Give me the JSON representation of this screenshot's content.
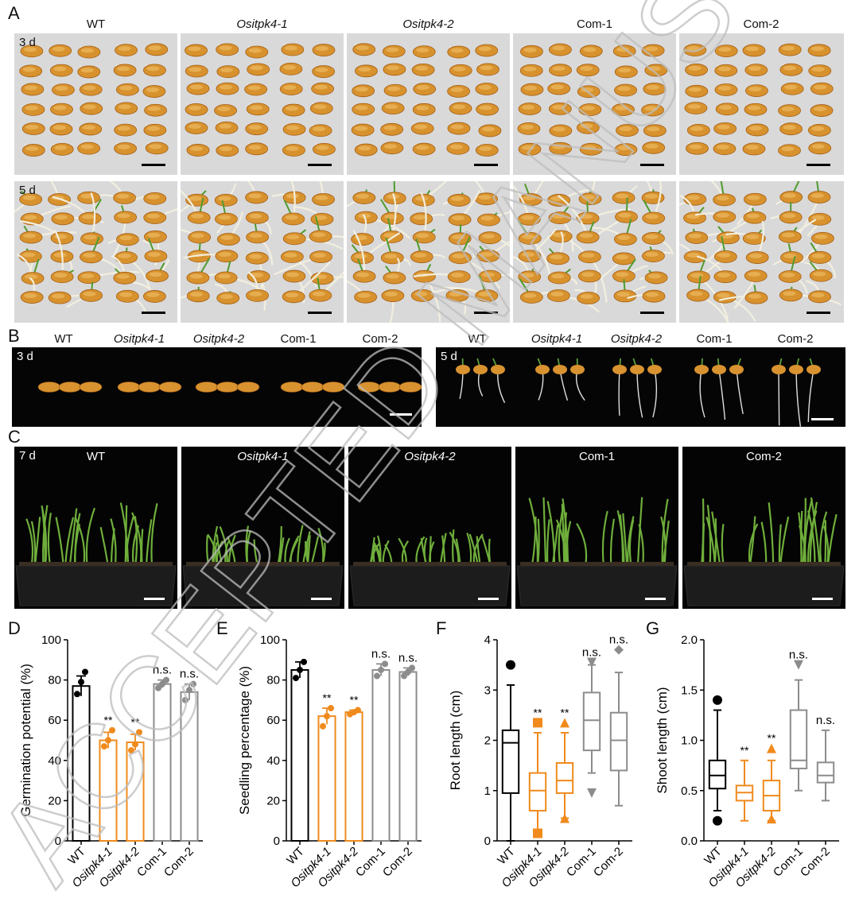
{
  "groups": [
    "WT",
    "Ositpk4-1",
    "Ositpk4-2",
    "Com-1",
    "Com-2"
  ],
  "panel_letters": {
    "a": "A",
    "b": "B",
    "c": "C",
    "d": "D",
    "e": "E",
    "f": "F",
    "g": "G"
  },
  "ages": {
    "a_top": "3 d",
    "a_bottom": "5 d",
    "b_left": "3 d",
    "b_right": "5 d",
    "c": "7 d"
  },
  "watermark": "ACCEPTED MANUSCRIPT",
  "colors": {
    "wt": "#000000",
    "mutant": "#f08a1d",
    "com": "#8c8c8c"
  },
  "chart_data": [
    {
      "panel": "D",
      "type": "bar",
      "categories": [
        "WT",
        "Ositpk4-1",
        "Ositpk4-2",
        "Com-1",
        "Com-2"
      ],
      "values": [
        77,
        50,
        49,
        78,
        74
      ],
      "errors": [
        5,
        4,
        4,
        2,
        4
      ],
      "points": [
        [
          73,
          79,
          84
        ],
        [
          47,
          50,
          55
        ],
        [
          45,
          48,
          54
        ],
        [
          76,
          78,
          80
        ],
        [
          70,
          75,
          78
        ]
      ],
      "annotations": [
        "",
        "**",
        "**",
        "n.s.",
        "n.s."
      ],
      "ylabel": "Germination potential (%)",
      "ylim": [
        0,
        100
      ],
      "yticks": [
        0,
        20,
        40,
        60,
        80,
        100
      ]
    },
    {
      "panel": "E",
      "type": "bar",
      "categories": [
        "WT",
        "Ositpk4-1",
        "Ositpk4-2",
        "Com-1",
        "Com-2"
      ],
      "values": [
        85,
        62,
        64,
        85,
        84
      ],
      "errors": [
        4,
        4,
        1,
        3,
        2
      ],
      "points": [
        [
          81,
          85,
          89
        ],
        [
          57,
          62,
          66
        ],
        [
          63,
          64,
          65
        ],
        [
          82,
          85,
          88
        ],
        [
          82,
          84,
          86
        ]
      ],
      "annotations": [
        "",
        "**",
        "**",
        "n.s.",
        "n.s."
      ],
      "ylabel": "Seedling percentage (%)",
      "ylim": [
        0,
        100
      ],
      "yticks": [
        0,
        20,
        40,
        60,
        80,
        100
      ]
    },
    {
      "panel": "F",
      "type": "box",
      "categories": [
        "WT",
        "Ositpk4-1",
        "Ositpk4-2",
        "Com-1",
        "Com-2"
      ],
      "boxes": [
        {
          "min": 0.0,
          "q1": 0.95,
          "median": 1.95,
          "q3": 2.2,
          "max": 3.1,
          "outliers": [
            3.5
          ],
          "shape": "circle"
        },
        {
          "min": 0.15,
          "q1": 0.6,
          "median": 1.0,
          "q3": 1.35,
          "max": 2.15,
          "outliers": [
            2.35,
            0.15
          ],
          "shape": "square"
        },
        {
          "min": 0.45,
          "q1": 0.95,
          "median": 1.2,
          "q3": 1.55,
          "max": 2.15,
          "outliers": [
            2.35,
            0.45
          ],
          "shape": "triangle-up"
        },
        {
          "min": 1.35,
          "q1": 1.8,
          "median": 2.4,
          "q3": 2.95,
          "max": 3.5,
          "outliers": [
            3.55,
            0.95
          ],
          "shape": "triangle-down"
        },
        {
          "min": 0.7,
          "q1": 1.4,
          "median": 2.0,
          "q3": 2.55,
          "max": 3.35,
          "outliers": [
            3.8
          ],
          "shape": "diamond"
        }
      ],
      "annotations": [
        "",
        "**",
        "**",
        "n.s.",
        "n.s."
      ],
      "ylabel": "Root length (cm)",
      "ylim": [
        0,
        4
      ],
      "yticks": [
        0,
        1,
        2,
        3,
        4
      ]
    },
    {
      "panel": "G",
      "type": "box",
      "categories": [
        "WT",
        "Ositpk4-1",
        "Ositpk4-2",
        "Com-1",
        "Com-2"
      ],
      "boxes": [
        {
          "min": 0.3,
          "q1": 0.52,
          "median": 0.65,
          "q3": 0.8,
          "max": 1.3,
          "outliers": [
            1.4,
            0.2
          ],
          "shape": "circle"
        },
        {
          "min": 0.2,
          "q1": 0.4,
          "median": 0.48,
          "q3": 0.55,
          "max": 0.8,
          "outliers": [],
          "shape": "square"
        },
        {
          "min": 0.2,
          "q1": 0.3,
          "median": 0.45,
          "q3": 0.6,
          "max": 0.8,
          "outliers": [
            0.92,
            0.22
          ],
          "shape": "triangle-up"
        },
        {
          "min": 0.5,
          "q1": 0.72,
          "median": 0.8,
          "q3": 1.3,
          "max": 1.6,
          "outliers": [
            1.75
          ],
          "shape": "triangle-down"
        },
        {
          "min": 0.4,
          "q1": 0.58,
          "median": 0.65,
          "q3": 0.78,
          "max": 1.1,
          "outliers": [],
          "shape": "diamond"
        }
      ],
      "annotations": [
        "",
        "**",
        "**",
        "n.s.",
        "n.s."
      ],
      "ylabel": "Shoot length (cm)",
      "ylim": [
        0,
        2.0
      ],
      "yticks": [
        "0.0",
        "0.5",
        "1.0",
        "1.5",
        "2.0"
      ]
    }
  ]
}
